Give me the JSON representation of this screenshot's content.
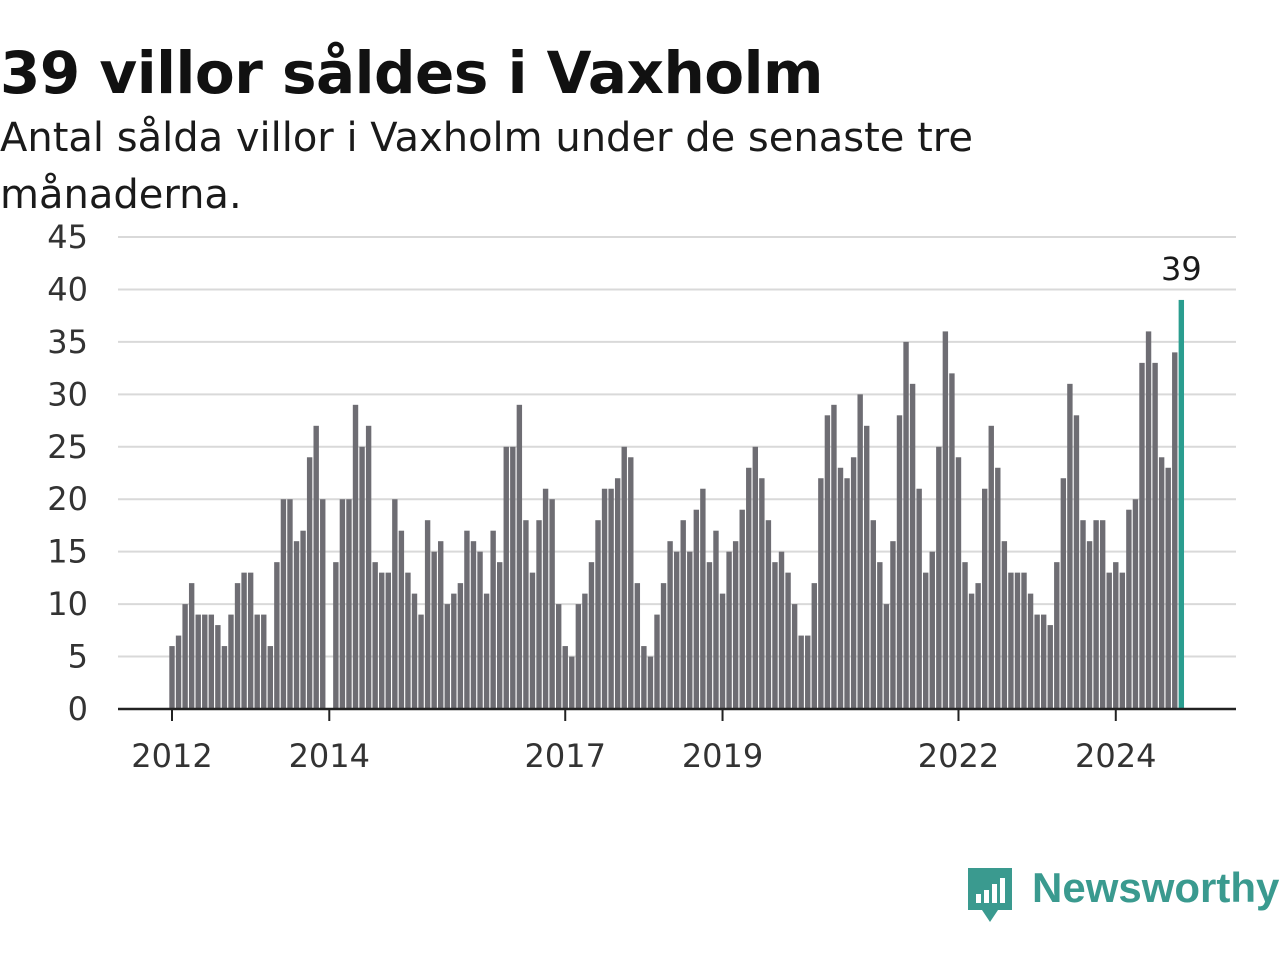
{
  "header": {
    "title": "39 villor såldes i Vaxholm",
    "subtitle": "Antal sålda villor i Vaxholm under de senaste tre månaderna."
  },
  "brand": {
    "name": "Newsworthy",
    "icon": "bar-chart-speech-bubble-icon",
    "color": "#3a9a8f"
  },
  "chart_data": {
    "type": "bar",
    "title": "39 villor såldes i Vaxholm",
    "subtitle": "Antal sålda villor i Vaxholm under de senaste tre månaderna.",
    "xlabel": "",
    "ylabel": "",
    "ylim": [
      0,
      45
    ],
    "y_ticks": [
      0,
      5,
      10,
      15,
      20,
      25,
      30,
      35,
      40,
      45
    ],
    "x_ticks": [
      {
        "label": "2012",
        "index": 0
      },
      {
        "label": "2014",
        "index": 24
      },
      {
        "label": "2017",
        "index": 60
      },
      {
        "label": "2019",
        "index": 84
      },
      {
        "label": "2022",
        "index": 120
      },
      {
        "label": "2024",
        "index": 144
      }
    ],
    "grid": true,
    "bar_color": "#6e6d73",
    "highlight_color": "#2a9d8f",
    "highlight_last": true,
    "highlight_label": "39",
    "start": "2012-01",
    "values": [
      6,
      7,
      10,
      12,
      9,
      9,
      9,
      8,
      6,
      9,
      12,
      13,
      13,
      9,
      9,
      6,
      14,
      20,
      20,
      16,
      17,
      24,
      27,
      20,
      0,
      14,
      20,
      20,
      29,
      25,
      27,
      14,
      13,
      13,
      20,
      17,
      13,
      11,
      9,
      18,
      15,
      16,
      10,
      11,
      12,
      17,
      16,
      15,
      11,
      17,
      14,
      25,
      25,
      29,
      18,
      13,
      18,
      21,
      20,
      10,
      6,
      5,
      10,
      11,
      14,
      18,
      21,
      21,
      22,
      25,
      24,
      12,
      6,
      5,
      9,
      12,
      16,
      15,
      18,
      15,
      19,
      21,
      14,
      17,
      11,
      15,
      16,
      19,
      23,
      25,
      22,
      18,
      14,
      15,
      13,
      10,
      7,
      7,
      12,
      22,
      28,
      29,
      23,
      22,
      24,
      30,
      27,
      18,
      14,
      10,
      16,
      28,
      35,
      31,
      21,
      13,
      15,
      25,
      36,
      32,
      24,
      14,
      11,
      12,
      21,
      27,
      23,
      16,
      13,
      13,
      13,
      11,
      9,
      9,
      8,
      14,
      22,
      31,
      28,
      18,
      16,
      18,
      18,
      13,
      14,
      13,
      19,
      20,
      33,
      36,
      33,
      24,
      23,
      34,
      39
    ]
  }
}
